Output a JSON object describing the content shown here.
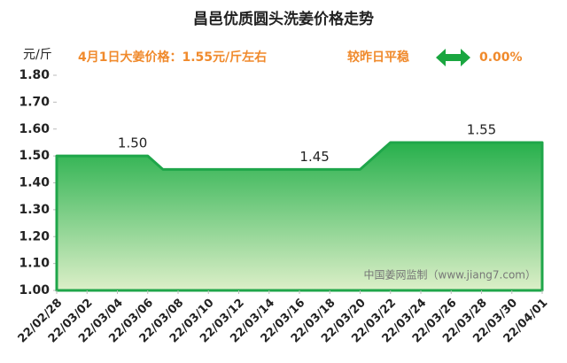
{
  "chart_data": {
    "type": "area",
    "title": "昌邑优质圆头洗姜价格走势",
    "y_label": "元/斤",
    "annotations": [
      "4月1日大姜价格：1.55元/斤左右",
      "较昨日平稳",
      "0.00%"
    ],
    "watermark": "中国姜网监制（www.jiang7.com）",
    "categories": [
      "22/02/28",
      null,
      "22/03/02",
      null,
      "22/03/04",
      null,
      "22/03/06",
      null,
      "22/03/08",
      null,
      "22/03/10",
      null,
      "22/03/12",
      null,
      "22/03/14",
      null,
      "22/03/16",
      null,
      "22/03/18",
      null,
      "22/03/20",
      null,
      "22/03/22",
      null,
      "22/03/24",
      null,
      "22/03/26",
      null,
      "22/03/28",
      null,
      "22/03/30",
      null,
      "22/04/01"
    ],
    "values": [
      1.5,
      1.5,
      1.5,
      1.5,
      1.5,
      1.5,
      1.5,
      1.45,
      1.45,
      1.45,
      1.45,
      1.45,
      1.45,
      1.45,
      1.45,
      1.45,
      1.45,
      1.45,
      1.45,
      1.45,
      1.45,
      1.5,
      1.55,
      1.55,
      1.55,
      1.55,
      1.55,
      1.55,
      1.55,
      1.55,
      1.55,
      1.55,
      1.55
    ],
    "value_labels": [
      null,
      null,
      null,
      null,
      null,
      "1.50",
      null,
      null,
      null,
      null,
      null,
      null,
      null,
      null,
      null,
      null,
      null,
      "1.45",
      null,
      null,
      null,
      null,
      null,
      null,
      null,
      null,
      null,
      null,
      "1.55",
      null,
      null,
      null,
      null
    ],
    "color": "#1fa64a",
    "ylim": [
      1.0,
      1.8
    ],
    "yticks": [
      {
        "value": 1.0,
        "label": "1.00"
      },
      {
        "value": 1.1,
        "label": "1.10"
      },
      {
        "value": 1.2,
        "label": "1.20"
      },
      {
        "value": 1.3,
        "label": "1.30"
      },
      {
        "value": 1.4,
        "label": "1.40"
      },
      {
        "value": 1.5,
        "label": "1.50"
      },
      {
        "value": 1.6,
        "label": "1.60"
      },
      {
        "value": 1.7,
        "label": "1.70"
      },
      {
        "value": 1.8,
        "label": "1.80"
      }
    ]
  }
}
